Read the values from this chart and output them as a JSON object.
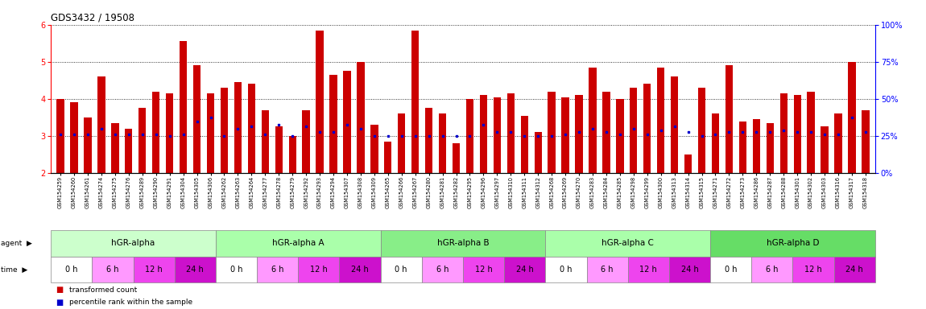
{
  "title": "GDS3432 / 19508",
  "samples": [
    "GSM154259",
    "GSM154260",
    "GSM154261",
    "GSM154274",
    "GSM154275",
    "GSM154276",
    "GSM154289",
    "GSM154290",
    "GSM154291",
    "GSM154304",
    "GSM154305",
    "GSM154306",
    "GSM154262",
    "GSM154263",
    "GSM154264",
    "GSM154277",
    "GSM154278",
    "GSM154279",
    "GSM154292",
    "GSM154293",
    "GSM154294",
    "GSM154307",
    "GSM154308",
    "GSM154309",
    "GSM154265",
    "GSM154266",
    "GSM154267",
    "GSM154280",
    "GSM154281",
    "GSM154282",
    "GSM154295",
    "GSM154296",
    "GSM154297",
    "GSM154310",
    "GSM154311",
    "GSM154312",
    "GSM154268",
    "GSM154269",
    "GSM154270",
    "GSM154283",
    "GSM154284",
    "GSM154285",
    "GSM154298",
    "GSM154299",
    "GSM154300",
    "GSM154313",
    "GSM154314",
    "GSM154315",
    "GSM154271",
    "GSM154272",
    "GSM154273",
    "GSM154286",
    "GSM154287",
    "GSM154288",
    "GSM154301",
    "GSM154302",
    "GSM154303",
    "GSM154316",
    "GSM154317",
    "GSM154318"
  ],
  "bar_heights": [
    4.0,
    3.9,
    3.5,
    4.6,
    3.35,
    3.2,
    3.75,
    4.2,
    4.15,
    5.55,
    4.9,
    4.15,
    4.3,
    4.45,
    4.4,
    3.7,
    3.25,
    3.0,
    3.7,
    5.85,
    4.65,
    4.75,
    5.0,
    3.3,
    2.85,
    3.6,
    5.85,
    3.75,
    3.6,
    2.8,
    4.0,
    4.1,
    4.05,
    4.15,
    3.55,
    3.1,
    4.2,
    4.05,
    4.1,
    4.85,
    4.2,
    4.0,
    4.3,
    4.4,
    4.85,
    4.6,
    2.5,
    4.3,
    3.6,
    4.9,
    3.4,
    3.45,
    3.35,
    4.15,
    4.1,
    4.2,
    3.25,
    3.6,
    5.0,
    3.7
  ],
  "percentile_y": [
    3.05,
    3.05,
    3.05,
    3.2,
    3.05,
    3.05,
    3.05,
    3.05,
    3.0,
    3.05,
    3.4,
    3.5,
    3.0,
    3.2,
    3.25,
    3.05,
    3.3,
    3.0,
    3.25,
    3.1,
    3.1,
    3.3,
    3.2,
    3.0,
    3.0,
    3.0,
    3.0,
    3.0,
    3.0,
    3.0,
    3.0,
    3.3,
    3.1,
    3.1,
    3.0,
    3.0,
    3.0,
    3.05,
    3.1,
    3.2,
    3.1,
    3.05,
    3.2,
    3.05,
    3.15,
    3.25,
    3.1,
    3.0,
    3.05,
    3.1,
    3.1,
    3.1,
    3.1,
    3.15,
    3.1,
    3.1,
    3.05,
    3.05,
    3.5,
    3.1
  ],
  "agents": [
    "hGR-alpha",
    "hGR-alpha A",
    "hGR-alpha B",
    "hGR-alpha C",
    "hGR-alpha D"
  ],
  "agent_colors": [
    "#ccffcc",
    "#aaffaa",
    "#88ee88",
    "#aaffaa",
    "#66dd66"
  ],
  "time_labels": [
    "0 h",
    "6 h",
    "12 h",
    "24 h"
  ],
  "time_colors": [
    "#ffffff",
    "#ff99ff",
    "#ee44ee",
    "#cc11cc"
  ],
  "bar_color": "#cc0000",
  "dot_color": "#0000cc",
  "ylim_left": [
    2.0,
    6.0
  ],
  "yticks_left": [
    2,
    3,
    4,
    5,
    6
  ],
  "yticks_right_labels": [
    "0%",
    "25%",
    "50%",
    "75%",
    "100%"
  ],
  "bg_color": "#ffffff"
}
